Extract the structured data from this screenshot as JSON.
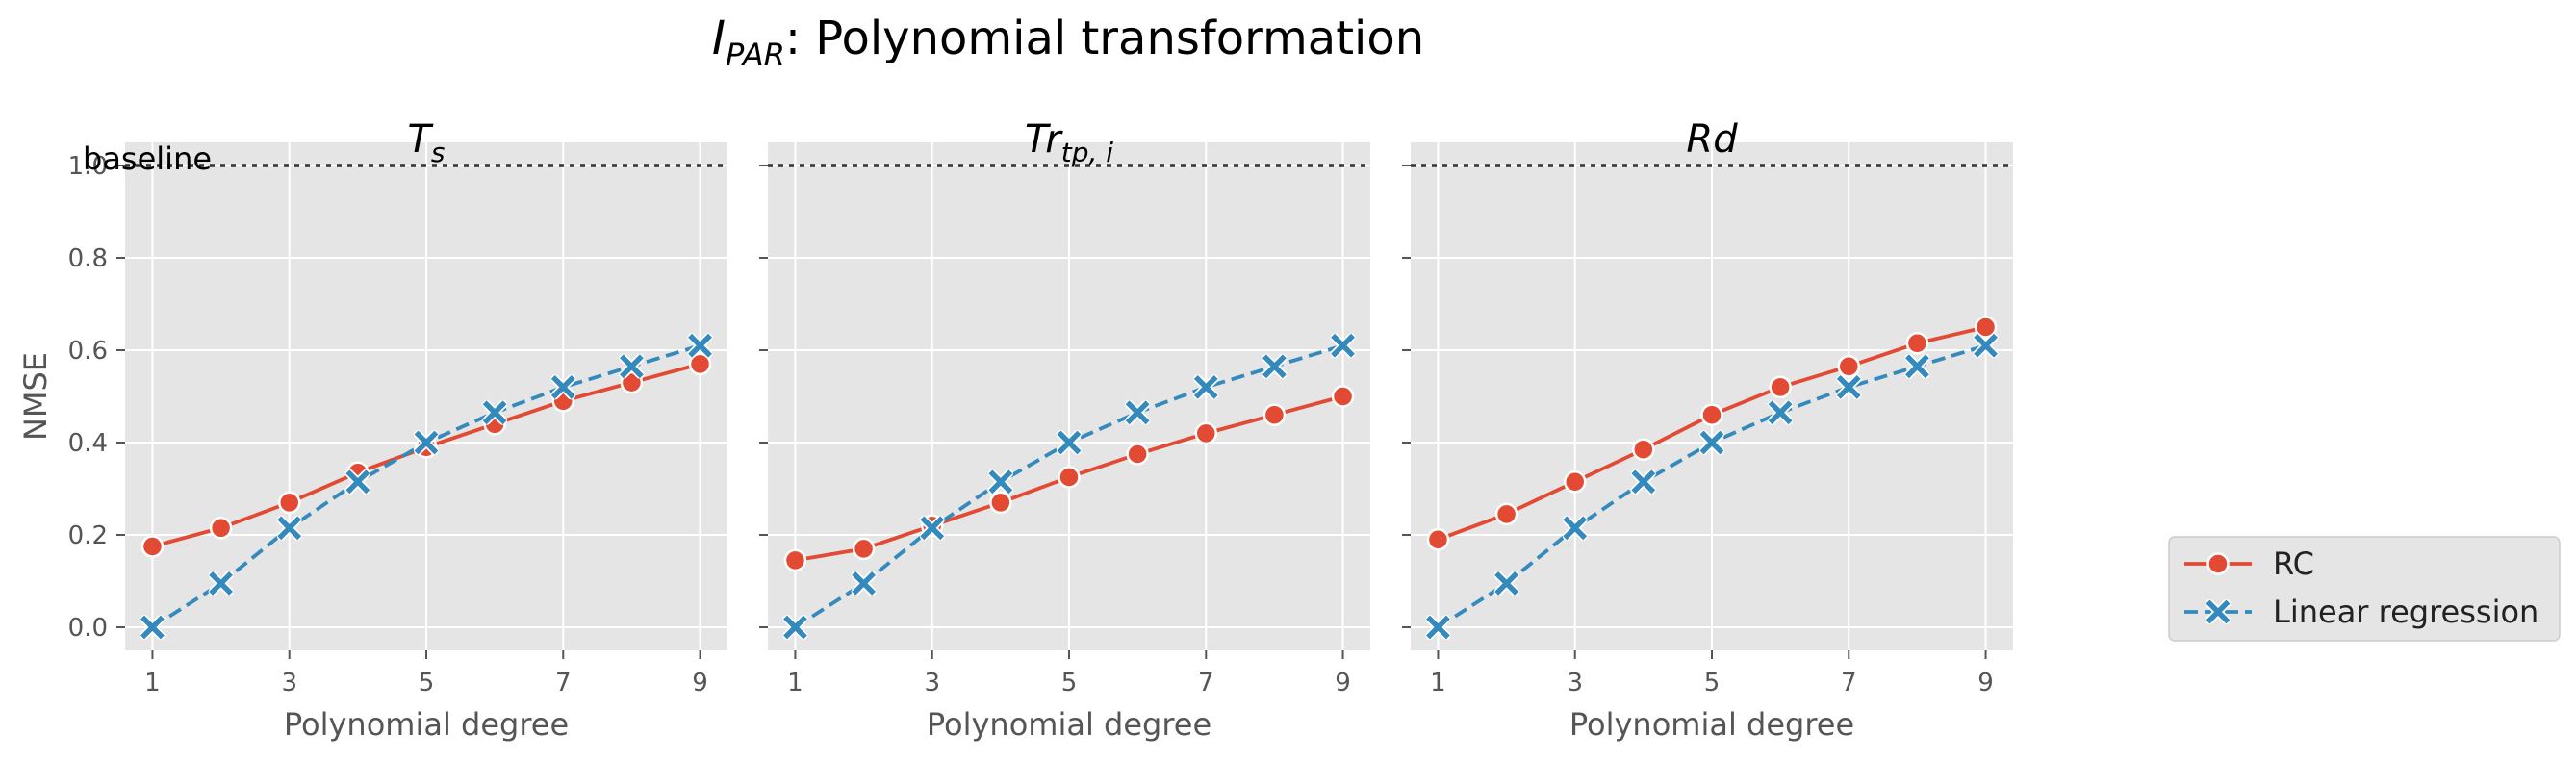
{
  "figure": {
    "title_main": "I",
    "title_sub": "PAR",
    "title_rest": ": Polynomial transformation"
  },
  "colors": {
    "rc": "#E24A33",
    "lr": "#348ABD",
    "panel_bg": "#E5E5E5",
    "grid": "#FFFFFF",
    "baseline": "#333333"
  },
  "legend": {
    "position": "right, vertically centered low",
    "entries": [
      {
        "label": "RC",
        "marker": "circle",
        "line": "solid",
        "color_key": "rc"
      },
      {
        "label": "Linear regression",
        "marker": "x",
        "line": "dashed",
        "color_key": "lr"
      }
    ]
  },
  "baseline_label": "baseline",
  "chart_data": [
    {
      "type": "line",
      "title_main": "T",
      "title_sub": "s",
      "xlabel": "Polynomial degree",
      "ylabel": "NMSE",
      "x": [
        1,
        2,
        3,
        4,
        5,
        6,
        7,
        8,
        9
      ],
      "xticks": [
        "1",
        "3",
        "5",
        "7",
        "9"
      ],
      "yticks": [
        "0.0",
        "0.2",
        "0.4",
        "0.6",
        "0.8",
        "1.0"
      ],
      "ylim": [
        -0.05,
        1.05
      ],
      "baseline": 1.0,
      "grid": true,
      "series": [
        {
          "name": "RC",
          "values": [
            0.175,
            0.215,
            0.27,
            0.335,
            0.39,
            0.44,
            0.49,
            0.53,
            0.57
          ]
        },
        {
          "name": "Linear regression",
          "values": [
            0.0,
            0.095,
            0.215,
            0.315,
            0.4,
            0.465,
            0.52,
            0.565,
            0.61
          ]
        }
      ]
    },
    {
      "type": "line",
      "title_main": "Tr",
      "title_sub": "tp, i",
      "xlabel": "Polynomial degree",
      "ylabel": "",
      "x": [
        1,
        2,
        3,
        4,
        5,
        6,
        7,
        8,
        9
      ],
      "xticks": [
        "1",
        "3",
        "5",
        "7",
        "9"
      ],
      "yticks": [],
      "ylim": [
        -0.05,
        1.05
      ],
      "baseline": 1.0,
      "grid": true,
      "series": [
        {
          "name": "RC",
          "values": [
            0.145,
            0.17,
            0.22,
            0.27,
            0.325,
            0.375,
            0.42,
            0.46,
            0.5
          ]
        },
        {
          "name": "Linear regression",
          "values": [
            0.0,
            0.095,
            0.215,
            0.315,
            0.4,
            0.465,
            0.52,
            0.565,
            0.61
          ]
        }
      ]
    },
    {
      "type": "line",
      "title_main": "Rd",
      "title_sub": "",
      "xlabel": "Polynomial degree",
      "ylabel": "",
      "x": [
        1,
        2,
        3,
        4,
        5,
        6,
        7,
        8,
        9
      ],
      "xticks": [
        "1",
        "3",
        "5",
        "7",
        "9"
      ],
      "yticks": [],
      "ylim": [
        -0.05,
        1.05
      ],
      "baseline": 1.0,
      "grid": true,
      "series": [
        {
          "name": "RC",
          "values": [
            0.19,
            0.245,
            0.315,
            0.385,
            0.46,
            0.52,
            0.565,
            0.615,
            0.65
          ]
        },
        {
          "name": "Linear regression",
          "values": [
            0.0,
            0.095,
            0.215,
            0.315,
            0.4,
            0.465,
            0.52,
            0.565,
            0.61
          ]
        }
      ]
    }
  ]
}
